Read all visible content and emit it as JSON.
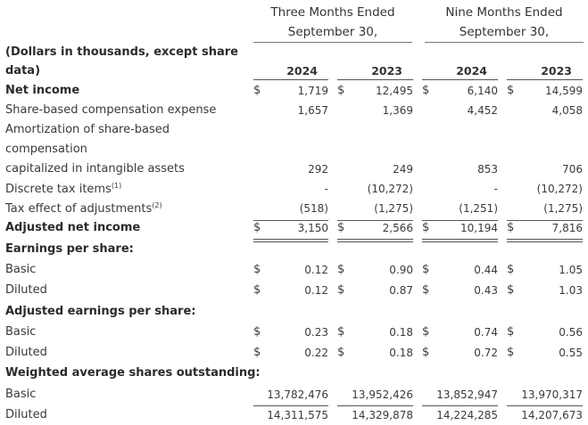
{
  "header": {
    "group1_line1": "Three Months Ended",
    "group1_line2": "September 30,",
    "group2_line1": "Nine Months Ended",
    "group2_line2": "September 30,",
    "units_line1": "(Dollars in thousands, except share",
    "units_line2": "data)",
    "years": [
      "2024",
      "2023",
      "2024",
      "2023"
    ]
  },
  "currency_symbol": "$",
  "rows": [
    {
      "label": "Net income",
      "bold": true,
      "dollar": true,
      "values": [
        "1,719",
        "12,495",
        "6,140",
        "14,599"
      ]
    },
    {
      "label": "Share-based compensation expense",
      "bold": false,
      "dollar": false,
      "values": [
        "1,657",
        "1,369",
        "4,452",
        "4,058"
      ]
    },
    {
      "label": "Amortization of share-based",
      "bold": false,
      "dollar": false,
      "values": [
        "",
        "",
        "",
        ""
      ]
    },
    {
      "label": "compensation",
      "bold": false,
      "dollar": false,
      "values": [
        "",
        "",
        "",
        ""
      ]
    },
    {
      "label": "capitalized in intangible assets",
      "bold": false,
      "dollar": false,
      "values": [
        "292",
        "249",
        "853",
        "706"
      ]
    },
    {
      "label": "Discrete tax items",
      "footnote": "(1)",
      "bold": false,
      "dollar": false,
      "values": [
        "-",
        "(10,272)",
        "-",
        "(10,272)"
      ]
    },
    {
      "label": "Tax effect of adjustments",
      "footnote": "(2)",
      "bold": false,
      "dollar": false,
      "values": [
        "(518)",
        "(1,275)",
        "(1,251)",
        "(1,275)"
      ]
    },
    {
      "label": "Adjusted net income",
      "bold": true,
      "dollar": true,
      "values": [
        "3,150",
        "2,566",
        "10,194",
        "7,816"
      ]
    },
    {
      "label": "Earnings per share:",
      "bold": true,
      "dollar": false,
      "values": [
        "",
        "",
        "",
        ""
      ]
    },
    {
      "label": "Basic",
      "bold": false,
      "dollar": true,
      "values": [
        "0.12",
        "0.90",
        "0.44",
        "1.05"
      ]
    },
    {
      "label": "Diluted",
      "bold": false,
      "dollar": true,
      "values": [
        "0.12",
        "0.87",
        "0.43",
        "1.03"
      ]
    },
    {
      "label": "Adjusted earnings per share:",
      "bold": true,
      "dollar": false,
      "values": [
        "",
        "",
        "",
        ""
      ]
    },
    {
      "label": "Basic",
      "bold": false,
      "dollar": true,
      "values": [
        "0.23",
        "0.18",
        "0.74",
        "0.56"
      ]
    },
    {
      "label": "Diluted",
      "bold": false,
      "dollar": true,
      "values": [
        "0.22",
        "0.18",
        "0.72",
        "0.55"
      ]
    },
    {
      "label": "Weighted average shares outstanding:",
      "bold": true,
      "dollar": false,
      "values": [
        "",
        "",
        "",
        ""
      ]
    },
    {
      "label": "Basic",
      "bold": false,
      "dollar": false,
      "values": [
        "13,782,476",
        "13,952,426",
        "13,852,947",
        "13,970,317"
      ]
    },
    {
      "label": "Diluted",
      "bold": false,
      "dollar": false,
      "values": [
        "14,311,575",
        "14,329,878",
        "14,224,285",
        "14,207,673"
      ]
    }
  ]
}
